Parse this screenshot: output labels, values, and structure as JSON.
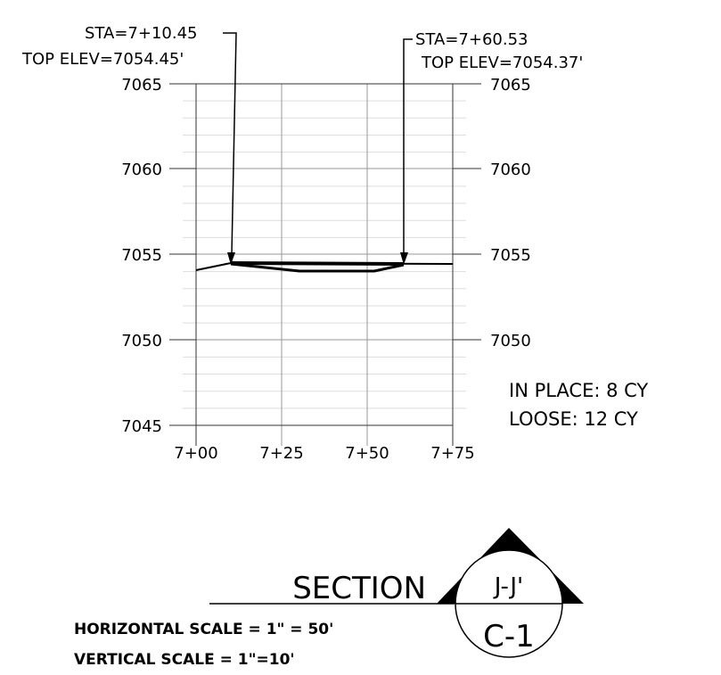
{
  "left_labels": [
    "STA=7+10.45",
    "TOP ELEV=7054.45'"
  ],
  "right_labels": [
    "STA=7+60.53",
    "TOP ELEV=7054.37'"
  ],
  "elevation_ticks": [
    "7065",
    "7060",
    "7055",
    "7050",
    "7045"
  ],
  "station_ticks": [
    "7+00",
    "7+25",
    "7+50",
    "7+75"
  ],
  "quantities": [
    "IN PLACE: 8 CY",
    "LOOSE: 12 CY"
  ],
  "section": {
    "title": "SECTION",
    "id": "J-J'",
    "sheet": "C-1"
  },
  "scales": [
    "HORIZONTAL SCALE = 1\" = 50'",
    "VERTICAL SCALE = 1\"=10'"
  ]
}
